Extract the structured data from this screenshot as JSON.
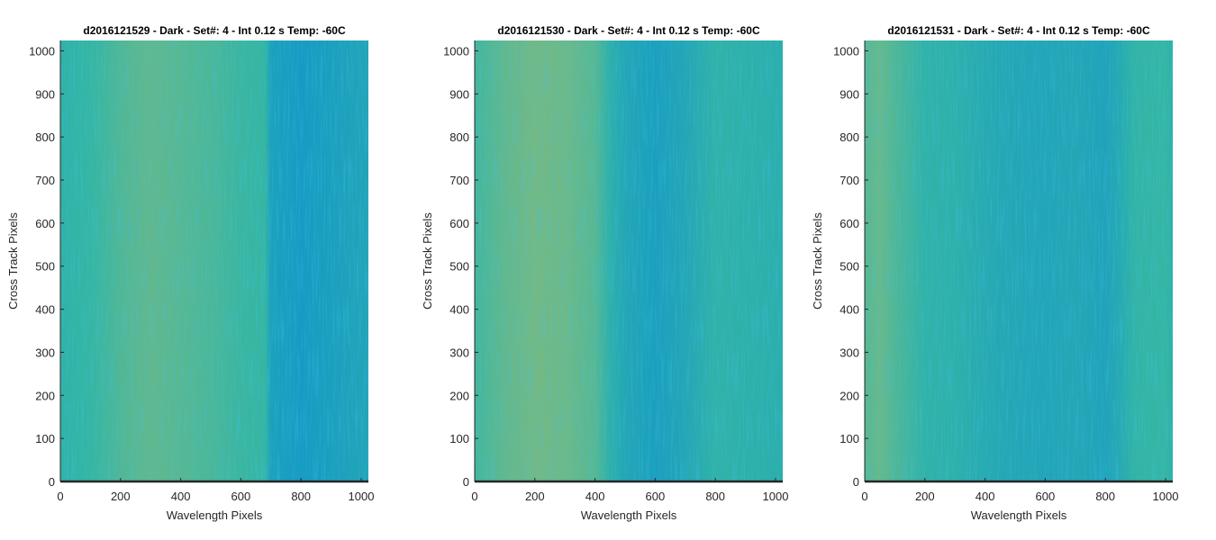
{
  "chart_data": [
    {
      "type": "heatmap",
      "title": "d2016121529 - Dark - Set#: 4 - Int 0.12 s Temp: -60C",
      "xlabel": "Wavelength Pixels",
      "ylabel": "Cross Track Pixels",
      "xlim": [
        0,
        1024
      ],
      "ylim": [
        0,
        1024
      ],
      "xticks": [
        0,
        200,
        400,
        600,
        800,
        1000
      ],
      "yticks": [
        0,
        100,
        200,
        300,
        400,
        500,
        600,
        700,
        800,
        900,
        1000
      ],
      "column_profile": {
        "x": [
          0,
          100,
          200,
          300,
          400,
          500,
          600,
          680,
          700,
          800,
          900,
          1024
        ],
        "intensity": [
          0.45,
          0.5,
          0.6,
          0.66,
          0.62,
          0.58,
          0.52,
          0.5,
          0.22,
          0.15,
          0.2,
          0.28
        ]
      }
    },
    {
      "type": "heatmap",
      "title": "d2016121530 - Dark - Set#: 4 - Int 0.12 s Temp: -60C",
      "xlabel": "Wavelength Pixels",
      "ylabel": "Cross Track Pixels",
      "xlim": [
        0,
        1024
      ],
      "ylim": [
        0,
        1024
      ],
      "xticks": [
        0,
        200,
        400,
        600,
        800,
        1000
      ],
      "yticks": [
        0,
        100,
        200,
        300,
        400,
        500,
        600,
        700,
        800,
        900,
        1000
      ],
      "column_profile": {
        "x": [
          0,
          100,
          200,
          300,
          400,
          450,
          500,
          600,
          700,
          800,
          900,
          1024
        ],
        "intensity": [
          0.55,
          0.66,
          0.72,
          0.7,
          0.62,
          0.42,
          0.3,
          0.2,
          0.3,
          0.45,
          0.42,
          0.4
        ]
      }
    },
    {
      "type": "heatmap",
      "title": "d2016121531 - Dark - Set#: 4 - Int 0.12 s Temp: -60C",
      "xlabel": "Wavelength Pixels",
      "ylabel": "Cross Track Pixels",
      "xlim": [
        0,
        1024
      ],
      "ylim": [
        0,
        1024
      ],
      "xticks": [
        0,
        200,
        400,
        600,
        800,
        1000
      ],
      "yticks": [
        0,
        100,
        200,
        300,
        400,
        500,
        600,
        700,
        800,
        900,
        1000
      ],
      "column_profile": {
        "x": [
          0,
          50,
          100,
          200,
          300,
          400,
          500,
          600,
          700,
          800,
          850,
          900,
          1000,
          1024
        ],
        "intensity": [
          0.62,
          0.68,
          0.6,
          0.45,
          0.42,
          0.35,
          0.3,
          0.28,
          0.3,
          0.25,
          0.35,
          0.48,
          0.5,
          0.42
        ]
      }
    }
  ],
  "colormap": {
    "low": "#0a8fd0",
    "mid": "#35b6a3",
    "high": "#c2bd5f"
  }
}
